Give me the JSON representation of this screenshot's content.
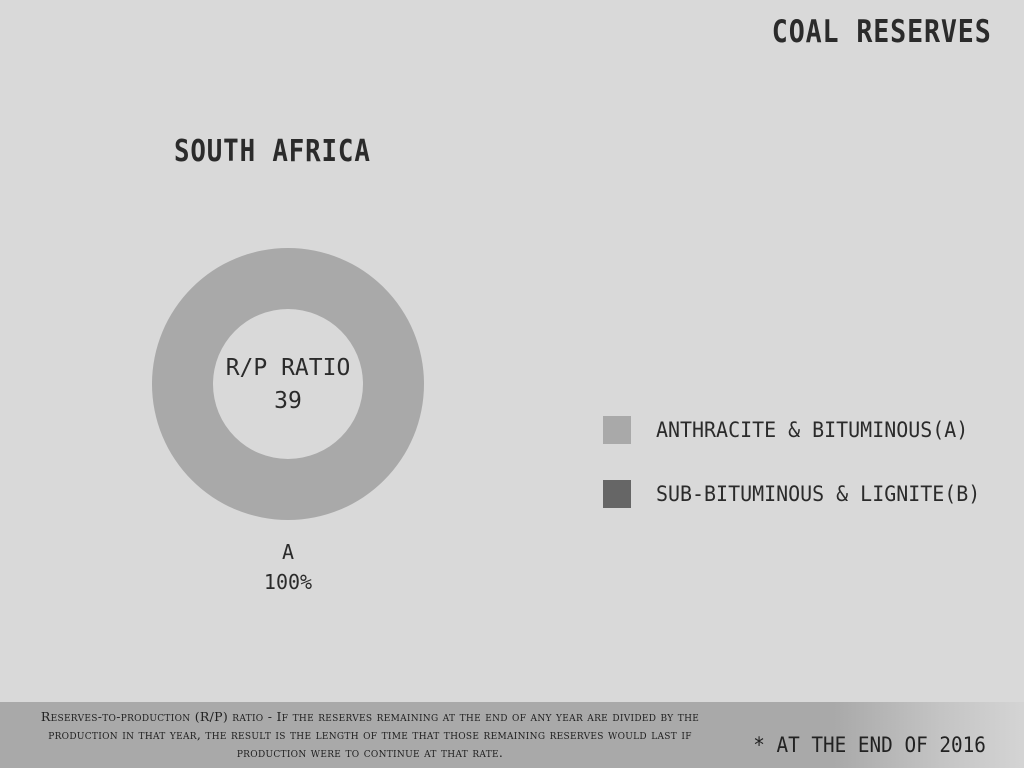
{
  "header": {
    "title": "COAL RESERVES"
  },
  "chart_data": {
    "type": "pie",
    "title": "SOUTH AFRICA",
    "center_label": "R/P RATIO",
    "center_value": "39",
    "series": [
      {
        "name": "ANTHRACITE & BITUMINOUS(A)",
        "short": "A",
        "value": 100,
        "value_label": "100%",
        "color": "#a9a9a9"
      },
      {
        "name": "SUB-BITUMINOUS & LIGNITE(B)",
        "short": "B",
        "value": 0,
        "color": "#666666"
      }
    ],
    "legend": "right"
  },
  "footer": {
    "definition": "Reserves-to-production (R/P) ratio - If the reserves remaining at the end of any year are divided by the production in that year, the result is the length of time that those remaining reserves would last if production were to continue at that rate.",
    "date_note": "* AT THE END OF 2016"
  }
}
